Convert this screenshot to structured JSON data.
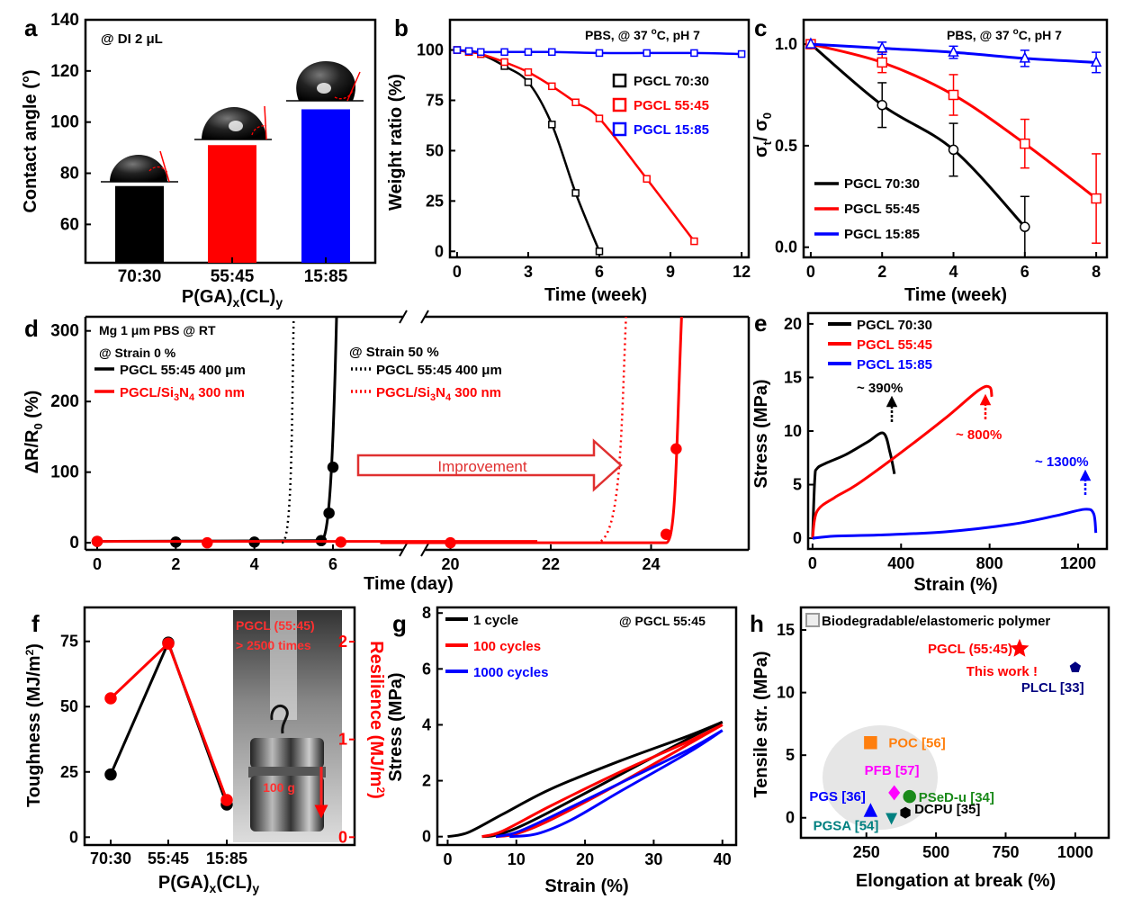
{
  "figure_title": "",
  "panels": {
    "a": {
      "letter": "a",
      "annotation": "@ DI 2 μL"
    },
    "b": {
      "letter": "b",
      "annotation": "PBS, @ 37 °C, pH 7"
    },
    "c": {
      "letter": "c",
      "annotation": "PBS, @ 37 °C, pH 7"
    },
    "d": {
      "letter": "d",
      "annotation_1": "Mg 1 μm  PBS @ RT",
      "annotation_2": "@ Strain 0 %",
      "annotation_3": "@ Strain 50 %",
      "arrow_label": "Improvement"
    },
    "e": {
      "letter": "e",
      "label_390": "~ 390%",
      "label_800": "~ 800%",
      "label_1300": "~ 1300%"
    },
    "f": {
      "letter": "f",
      "photo_text_1": "PGCL (55:45)",
      "photo_text_2": "> 2500 times",
      "photo_weight": "100 g"
    },
    "g": {
      "letter": "g",
      "annotation": "@ PGCL 55:45"
    },
    "h": {
      "letter": "h",
      "legend": "Biodegradable/elastomeric polymer"
    }
  },
  "colors": {
    "black": "#000000",
    "red": "#ff0000",
    "blue": "#0000ff",
    "orange": "#ff7f0e",
    "magenta": "#ff00ff",
    "green": "#1a8a1a",
    "teal": "#008080",
    "navy": "#000080"
  },
  "chart_data": [
    {
      "id": "a",
      "type": "bar",
      "ylabel": "Contact angle (°)",
      "xlabel": "P(GA)x(CL)y",
      "ylim": [
        45,
        140
      ],
      "yticks": [
        60,
        80,
        100,
        120,
        140
      ],
      "categories": [
        "70:30",
        "55:45",
        "15:85"
      ],
      "values": [
        75,
        91,
        105
      ],
      "colors": [
        "#000000",
        "#ff0000",
        "#0000ff"
      ]
    },
    {
      "id": "b",
      "type": "line",
      "xlabel": "Time (week)",
      "ylabel": "Weight ratio (%)",
      "xlim": [
        -0.3,
        12.3
      ],
      "ylim": [
        -3,
        115
      ],
      "xticks": [
        0,
        3,
        6,
        9,
        12
      ],
      "yticks": [
        0,
        25,
        50,
        75,
        100
      ],
      "series": [
        {
          "name": "PGCL 70:30",
          "color": "#000000",
          "x": [
            0,
            0.5,
            1,
            2,
            3,
            4,
            5,
            6
          ],
          "y": [
            100,
            99,
            98,
            92,
            84,
            63,
            29,
            0
          ]
        },
        {
          "name": "PGCL 55:45",
          "color": "#ff0000",
          "x": [
            0,
            0.5,
            1,
            2,
            3,
            4,
            5,
            6,
            8,
            10
          ],
          "y": [
            100,
            99,
            98,
            94,
            89,
            82,
            74,
            66,
            36,
            5
          ]
        },
        {
          "name": "PGCL 15:85",
          "color": "#0000ff",
          "x": [
            0,
            0.5,
            1,
            2,
            3,
            4,
            6,
            8,
            10,
            12
          ],
          "y": [
            100,
            99.5,
            99,
            99,
            99,
            99,
            98.5,
            98.5,
            98.5,
            98
          ]
        }
      ]
    },
    {
      "id": "c",
      "type": "line",
      "xlabel": "Time (week)",
      "ylabel": "σt/ σ0",
      "xlim": [
        -0.2,
        8.3
      ],
      "ylim": [
        -0.05,
        1.12
      ],
      "xticks": [
        0,
        2,
        4,
        6,
        8
      ],
      "yticks": [
        0.0,
        0.5,
        1.0
      ],
      "series": [
        {
          "name": "PGCL 70:30",
          "color": "#000000",
          "x": [
            0,
            2,
            4,
            6
          ],
          "y": [
            1.0,
            0.7,
            0.48,
            0.1
          ],
          "err": [
            0,
            0.11,
            0.13,
            0.15
          ]
        },
        {
          "name": "PGCL 55:45",
          "color": "#ff0000",
          "x": [
            0,
            2,
            4,
            6,
            8
          ],
          "y": [
            1.0,
            0.91,
            0.75,
            0.51,
            0.24
          ],
          "err": [
            0,
            0.05,
            0.1,
            0.12,
            0.22
          ]
        },
        {
          "name": "PGCL 15:85",
          "color": "#0000ff",
          "x": [
            0,
            2,
            4,
            6,
            8
          ],
          "y": [
            1.0,
            0.98,
            0.96,
            0.93,
            0.91
          ],
          "err": [
            0,
            0.03,
            0.03,
            0.04,
            0.05
          ]
        }
      ]
    },
    {
      "id": "d",
      "type": "line",
      "xlabel": "Time (day)",
      "ylabel": "ΔR/R0 (%)",
      "ylim": [
        -10,
        320
      ],
      "yticks": [
        0,
        100,
        200,
        300
      ],
      "xticks_left": [
        0,
        2,
        4,
        6
      ],
      "xticks_right": [
        20,
        22,
        24
      ],
      "series": [
        {
          "name": "PGCL 55:45 400 μm",
          "condition": "@ Strain 0 %",
          "color": "#000000",
          "dash": false,
          "x": [
            0,
            2,
            4,
            5.7,
            5.9,
            6.0
          ],
          "y": [
            2,
            1,
            1,
            3,
            42,
            107
          ]
        },
        {
          "name": "PGCL/Si3N4 300 nm",
          "condition": "@ Strain 0 %",
          "color": "#ff0000",
          "dash": false,
          "x": [
            0,
            2.8,
            6.2,
            20,
            24.3,
            24.5
          ],
          "y": [
            2,
            0,
            1,
            0,
            12,
            133
          ]
        },
        {
          "name": "PGCL 55:45 400 μm",
          "condition": "@ Strain 50 %",
          "color": "#000000",
          "dash": true,
          "x": [
            4.7,
            4.95,
            5.0
          ],
          "y": [
            0,
            150,
            310
          ]
        },
        {
          "name": "PGCL/Si3N4 300 nm",
          "condition": "@ Strain 50 %",
          "color": "#ff0000",
          "dash": true,
          "x": [
            22.9,
            23.4,
            23.5
          ],
          "y": [
            0,
            150,
            310
          ]
        }
      ]
    },
    {
      "id": "e",
      "type": "line",
      "xlabel": "Strain (%)",
      "ylabel": "Stress (MPa)",
      "xlim": [
        -20,
        1330
      ],
      "ylim": [
        -1,
        21
      ],
      "xticks": [
        0,
        400,
        800,
        1200
      ],
      "yticks": [
        0,
        5,
        10,
        15,
        20
      ],
      "series": [
        {
          "name": "PGCL 70:30",
          "color": "#000000",
          "x": [
            0,
            10,
            20,
            60,
            150,
            250,
            320,
            350,
            370
          ],
          "y": [
            0,
            5.5,
            6.5,
            7,
            7.8,
            9,
            9.8,
            8,
            6
          ]
        },
        {
          "name": "PGCL 55:45",
          "color": "#ff0000",
          "x": [
            0,
            20,
            100,
            200,
            400,
            600,
            750,
            800,
            810
          ],
          "y": [
            0,
            2.5,
            3.8,
            5,
            8,
            11.2,
            13.8,
            14.1,
            13.2
          ]
        },
        {
          "name": "PGCL 15:85",
          "color": "#0000ff",
          "x": [
            0,
            100,
            300,
            600,
            900,
            1100,
            1230,
            1270,
            1280
          ],
          "y": [
            0,
            0.2,
            0.3,
            0.6,
            1.3,
            2.1,
            2.7,
            2.3,
            0.5
          ]
        }
      ]
    },
    {
      "id": "f",
      "type": "line",
      "xlabel": "P(GA)x(CL)y",
      "ylabel": "Toughness (MJ/m²)",
      "ylabel_right": "Resilience (MJ/m²)",
      "categories": [
        "70:30",
        "55:45",
        "15:85"
      ],
      "ylim": [
        -3,
        88
      ],
      "yticks": [
        0,
        25,
        50,
        75
      ],
      "ylim_right": [
        -0.08,
        2.35
      ],
      "yticks_right": [
        0,
        1,
        2
      ],
      "series": [
        {
          "name": "Toughness",
          "axis": "left",
          "color": "#000000",
          "values": [
            24,
            74.5,
            12.5
          ]
        },
        {
          "name": "Resilience",
          "axis": "right",
          "color": "#ff0000",
          "values": [
            1.42,
            1.98,
            0.38
          ]
        }
      ]
    },
    {
      "id": "g",
      "type": "line",
      "xlabel": "Strain (%)",
      "ylabel": "Stress (MPa)",
      "xlim": [
        -1.5,
        42
      ],
      "ylim": [
        -0.3,
        8.2
      ],
      "xticks": [
        0,
        10,
        20,
        30,
        40
      ],
      "yticks": [
        0,
        2,
        4,
        6,
        8
      ],
      "series": [
        {
          "name": "1 cycle",
          "color": "#000000",
          "load_x": [
            0,
            3,
            8,
            15,
            25,
            35,
            40
          ],
          "load_y": [
            0,
            0.15,
            0.8,
            1.7,
            2.7,
            3.6,
            4.1
          ],
          "unload_x": [
            40,
            35,
            25,
            15,
            10,
            7,
            5
          ],
          "unload_y": [
            4.1,
            3.5,
            2.2,
            0.9,
            0.3,
            0.05,
            0
          ]
        },
        {
          "name": "100 cycles",
          "color": "#ff0000",
          "load_x": [
            5,
            8,
            15,
            25,
            35,
            40
          ],
          "load_y": [
            0,
            0.2,
            1.1,
            2.3,
            3.4,
            4.0
          ],
          "unload_x": [
            40,
            35,
            25,
            15,
            10,
            7
          ],
          "unload_y": [
            4.0,
            3.3,
            1.9,
            0.6,
            0.1,
            0
          ]
        },
        {
          "name": "1000 cycles",
          "color": "#0000ff",
          "load_x": [
            7,
            10,
            15,
            25,
            35,
            40
          ],
          "load_y": [
            0,
            0.15,
            0.7,
            1.9,
            3.1,
            3.8
          ],
          "unload_x": [
            40,
            35,
            25,
            18,
            13,
            9
          ],
          "unload_y": [
            3.8,
            3.0,
            1.6,
            0.6,
            0.1,
            0
          ]
        }
      ]
    },
    {
      "id": "h",
      "type": "scatter",
      "xlabel": "Elongation at break (%)",
      "ylabel": "Tensile str. (MPa)",
      "xlim": [
        15,
        1120
      ],
      "ylim": [
        -1.6,
        16.8
      ],
      "xticks": [
        250,
        500,
        750,
        1000
      ],
      "yticks": [
        0,
        5,
        10,
        15
      ],
      "points": [
        {
          "label": "PGCL (55:45)",
          "label2": "This work !",
          "x": 800,
          "y": 13.5,
          "color": "#ff0000",
          "marker": "star"
        },
        {
          "label": "PLCL [33]",
          "x": 1000,
          "y": 12,
          "color": "#000080",
          "marker": "pentagon"
        },
        {
          "label": "POC [56]",
          "x": 265,
          "y": 6,
          "color": "#ff7f0e",
          "marker": "square"
        },
        {
          "label": "PFB [57]",
          "x": 350,
          "y": 2,
          "color": "#ff00ff",
          "marker": "diamond"
        },
        {
          "label": "PSeD-u [34]",
          "x": 405,
          "y": 1.7,
          "color": "#1a8a1a",
          "marker": "circle"
        },
        {
          "label": "PGS [36]",
          "x": 265,
          "y": 0.5,
          "color": "#0000ff",
          "marker": "triangle-up"
        },
        {
          "label": "PGSA [54]",
          "x": 340,
          "y": 0,
          "color": "#008080",
          "marker": "triangle-down"
        },
        {
          "label": "DCPU [35]",
          "x": 390,
          "y": 0.4,
          "color": "#000000",
          "marker": "hexagon"
        }
      ]
    }
  ]
}
